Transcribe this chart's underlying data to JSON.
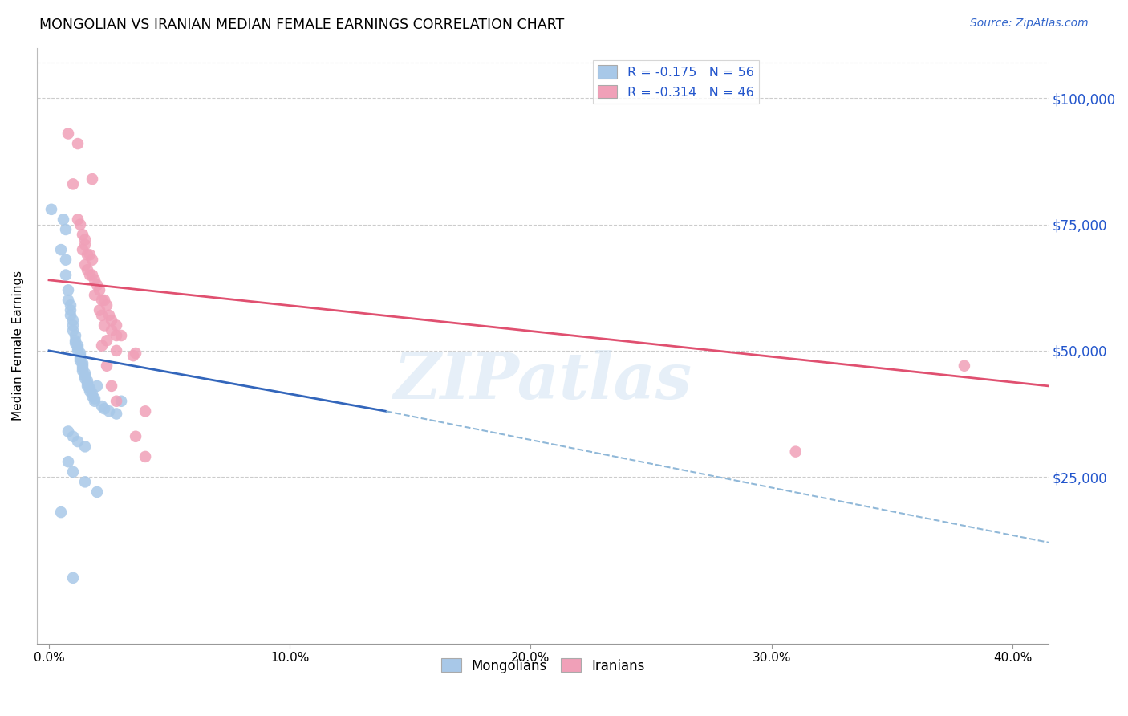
{
  "title": "MONGOLIAN VS IRANIAN MEDIAN FEMALE EARNINGS CORRELATION CHART",
  "source": "Source: ZipAtlas.com",
  "ylabel": "Median Female Earnings",
  "xlabel_ticks": [
    "0.0%",
    "",
    "",
    "",
    "10.0%",
    "",
    "",
    "",
    "20.0%",
    "",
    "",
    "",
    "30.0%",
    "",
    "",
    "",
    "40.0%"
  ],
  "xlabel_vals": [
    0.0,
    0.025,
    0.05,
    0.075,
    0.1,
    0.125,
    0.15,
    0.175,
    0.2,
    0.225,
    0.25,
    0.275,
    0.3,
    0.325,
    0.35,
    0.375,
    0.4
  ],
  "xlabel_major_ticks": [
    0.0,
    0.1,
    0.2,
    0.3,
    0.4
  ],
  "xlabel_major_labels": [
    "0.0%",
    "10.0%",
    "20.0%",
    "30.0%",
    "40.0%"
  ],
  "ylabel_ticks": [
    "$25,000",
    "$50,000",
    "$75,000",
    "$100,000"
  ],
  "ylabel_vals": [
    25000,
    50000,
    75000,
    100000
  ],
  "xlim": [
    -0.005,
    0.415
  ],
  "ylim": [
    -8000,
    110000
  ],
  "legend_mongolian": "R = -0.175   N = 56",
  "legend_iranian": "R = -0.314   N = 46",
  "mongolian_color": "#a8c8e8",
  "iranian_color": "#f0a0b8",
  "trend_mongolian_solid_color": "#3366bb",
  "trend_iranian_solid_color": "#e05070",
  "trend_mongolian_dashed_color": "#90b8d8",
  "watermark": "ZIPatlas",
  "mongolian_points": [
    [
      0.001,
      78000
    ],
    [
      0.005,
      70000
    ],
    [
      0.007,
      68000
    ],
    [
      0.006,
      76000
    ],
    [
      0.007,
      74000
    ],
    [
      0.007,
      65000
    ],
    [
      0.008,
      62000
    ],
    [
      0.008,
      60000
    ],
    [
      0.009,
      59000
    ],
    [
      0.009,
      58000
    ],
    [
      0.009,
      57000
    ],
    [
      0.01,
      56000
    ],
    [
      0.01,
      55000
    ],
    [
      0.01,
      54000
    ],
    [
      0.011,
      53000
    ],
    [
      0.011,
      52000
    ],
    [
      0.011,
      51500
    ],
    [
      0.012,
      51000
    ],
    [
      0.012,
      50500
    ],
    [
      0.012,
      50000
    ],
    [
      0.013,
      49500
    ],
    [
      0.013,
      49000
    ],
    [
      0.013,
      48500
    ],
    [
      0.013,
      48000
    ],
    [
      0.014,
      47500
    ],
    [
      0.014,
      47000
    ],
    [
      0.014,
      46500
    ],
    [
      0.014,
      46000
    ],
    [
      0.015,
      45500
    ],
    [
      0.015,
      45000
    ],
    [
      0.015,
      44500
    ],
    [
      0.016,
      44000
    ],
    [
      0.016,
      43500
    ],
    [
      0.016,
      43000
    ],
    [
      0.017,
      42500
    ],
    [
      0.017,
      42000
    ],
    [
      0.018,
      41500
    ],
    [
      0.018,
      41000
    ],
    [
      0.019,
      40500
    ],
    [
      0.019,
      40000
    ],
    [
      0.02,
      43000
    ],
    [
      0.022,
      39000
    ],
    [
      0.023,
      38500
    ],
    [
      0.025,
      38000
    ],
    [
      0.028,
      37500
    ],
    [
      0.03,
      40000
    ],
    [
      0.008,
      34000
    ],
    [
      0.01,
      33000
    ],
    [
      0.012,
      32000
    ],
    [
      0.015,
      31000
    ],
    [
      0.008,
      28000
    ],
    [
      0.01,
      26000
    ],
    [
      0.015,
      24000
    ],
    [
      0.02,
      22000
    ],
    [
      0.005,
      18000
    ],
    [
      0.01,
      5000
    ]
  ],
  "iranian_points": [
    [
      0.008,
      93000
    ],
    [
      0.012,
      91000
    ],
    [
      0.01,
      83000
    ],
    [
      0.018,
      84000
    ],
    [
      0.012,
      76000
    ],
    [
      0.013,
      75000
    ],
    [
      0.014,
      73000
    ],
    [
      0.015,
      72000
    ],
    [
      0.015,
      71000
    ],
    [
      0.014,
      70000
    ],
    [
      0.016,
      69000
    ],
    [
      0.017,
      69000
    ],
    [
      0.018,
      68000
    ],
    [
      0.015,
      67000
    ],
    [
      0.016,
      66000
    ],
    [
      0.017,
      65000
    ],
    [
      0.018,
      65000
    ],
    [
      0.019,
      64000
    ],
    [
      0.02,
      63000
    ],
    [
      0.021,
      62000
    ],
    [
      0.019,
      61000
    ],
    [
      0.022,
      60000
    ],
    [
      0.023,
      60000
    ],
    [
      0.024,
      59000
    ],
    [
      0.021,
      58000
    ],
    [
      0.022,
      57000
    ],
    [
      0.025,
      57000
    ],
    [
      0.026,
      56000
    ],
    [
      0.023,
      55000
    ],
    [
      0.028,
      55000
    ],
    [
      0.026,
      54000
    ],
    [
      0.028,
      53000
    ],
    [
      0.03,
      53000
    ],
    [
      0.024,
      52000
    ],
    [
      0.022,
      51000
    ],
    [
      0.028,
      50000
    ],
    [
      0.035,
      49000
    ],
    [
      0.036,
      49500
    ],
    [
      0.024,
      47000
    ],
    [
      0.026,
      43000
    ],
    [
      0.028,
      40000
    ],
    [
      0.04,
      38000
    ],
    [
      0.036,
      33000
    ],
    [
      0.04,
      29000
    ],
    [
      0.38,
      47000
    ],
    [
      0.31,
      30000
    ]
  ],
  "trend_mongolian_solid_x0": 0.0,
  "trend_mongolian_solid_x1": 0.14,
  "trend_mongolian_solid_y0": 50000,
  "trend_mongolian_solid_y1": 38000,
  "trend_mongolian_dashed_x0": 0.14,
  "trend_mongolian_dashed_x1": 0.415,
  "trend_mongolian_dashed_y0": 38000,
  "trend_mongolian_dashed_y1": 12000,
  "trend_iranian_x0": 0.0,
  "trend_iranian_x1": 0.415,
  "trend_iranian_y0": 64000,
  "trend_iranian_y1": 43000
}
